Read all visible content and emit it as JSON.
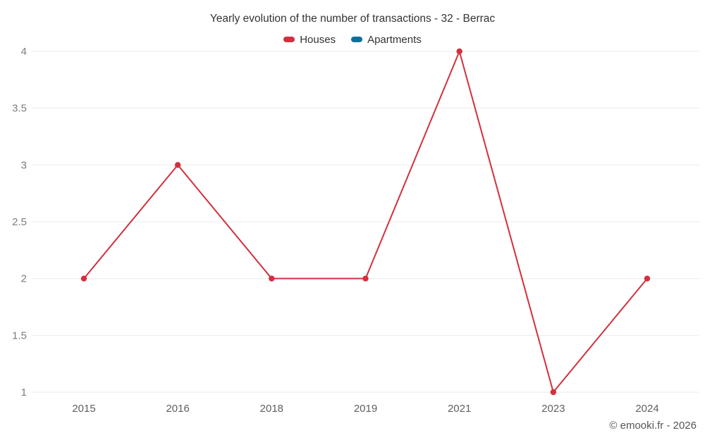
{
  "title": "Yearly evolution of the number of transactions - 32 - Berrac",
  "legend": [
    {
      "label": "Houses",
      "color": "#d2303d"
    },
    {
      "label": "Apartments",
      "color": "#0f709c"
    }
  ],
  "footer": {
    "copyright": "© emooki.fr - 2026"
  },
  "chart_data": {
    "type": "line",
    "title": "Yearly evolution of the number of transactions - 32 - Berrac",
    "categories": [
      "2015",
      "2016",
      "2018",
      "2019",
      "2021",
      "2023",
      "2024"
    ],
    "series": [
      {
        "name": "Houses",
        "color": "#d2303d",
        "values": [
          2,
          3,
          2,
          2,
          4,
          1,
          2
        ]
      },
      {
        "name": "Apartments",
        "color": "#0f709c",
        "values": []
      }
    ],
    "xlabel": "",
    "ylabel": "",
    "ylim": [
      1,
      4
    ],
    "yticks": [
      1,
      1.5,
      2,
      2.5,
      3,
      3.5,
      4
    ],
    "grid": true,
    "legend_position": "top",
    "colors": {
      "gridline": "#ebebeb",
      "y_tick_label": "#7d7d7d",
      "x_tick_label": "#5f5f5f"
    }
  }
}
